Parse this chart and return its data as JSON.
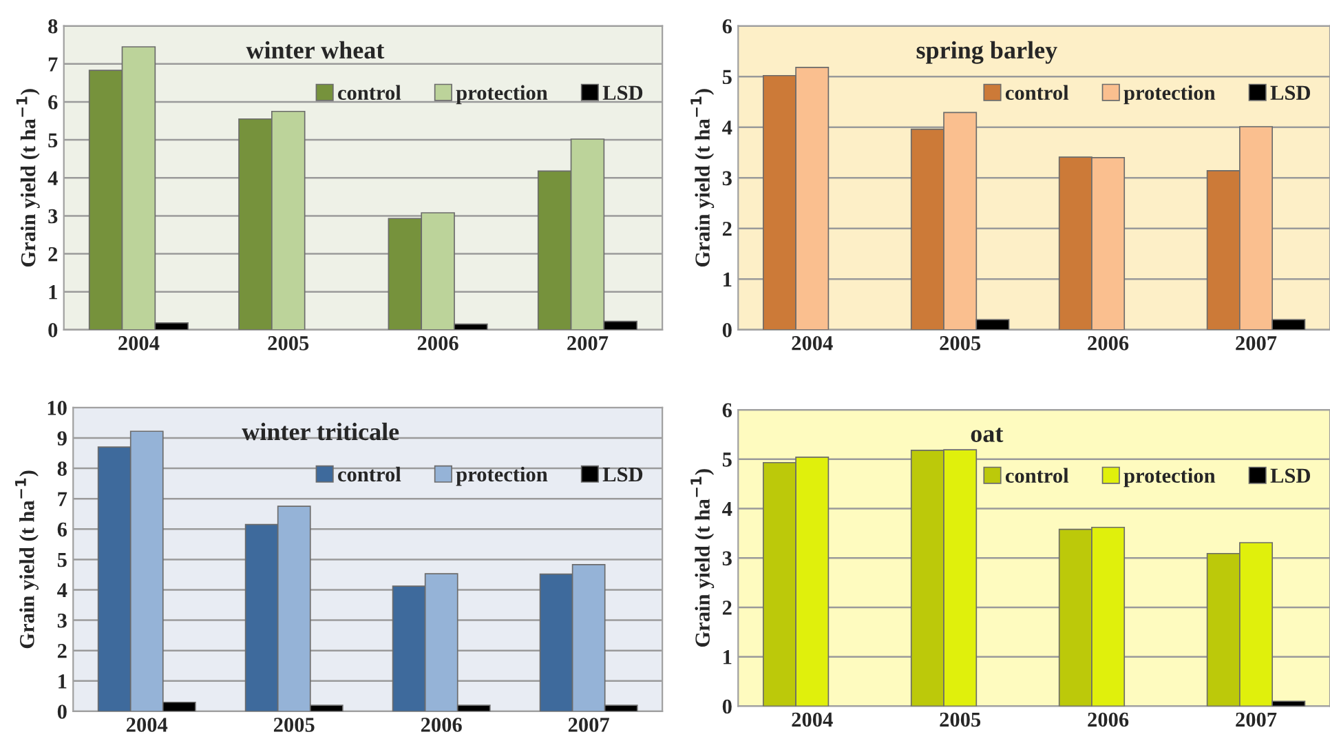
{
  "chart_data": [
    {
      "type": "bar",
      "title": "winter wheat",
      "ylabel": "Grain yield (t ha$^{−1}$)",
      "categories": [
        "2004",
        "2005",
        "2006",
        "2007"
      ],
      "ylim": [
        0,
        8
      ],
      "yticks": [
        0,
        1,
        2,
        3,
        4,
        5,
        6,
        7,
        8
      ],
      "grid": "y",
      "legend": "top right",
      "series": [
        {
          "name": "control",
          "color": "#76923c",
          "values": [
            6.83,
            5.55,
            2.93,
            4.18
          ]
        },
        {
          "name": "protection",
          "color": "#bcd39a",
          "values": [
            7.45,
            5.75,
            3.08,
            5.02
          ]
        },
        {
          "name": "LSD",
          "color": "#000000",
          "values": [
            0.18,
            null,
            0.15,
            0.22
          ]
        }
      ]
    },
    {
      "type": "bar",
      "title": "spring barley",
      "ylabel": "Grain yield (t ha$^{−1}$)",
      "categories": [
        "2004",
        "2005",
        "2006",
        "2007"
      ],
      "ylim": [
        0,
        6
      ],
      "yticks": [
        0,
        1,
        2,
        3,
        4,
        5,
        6
      ],
      "grid": "y",
      "legend": "top right",
      "series": [
        {
          "name": "control",
          "color": "#cc7a38",
          "values": [
            5.02,
            3.96,
            3.41,
            3.14
          ]
        },
        {
          "name": "protection",
          "color": "#fabf8f",
          "values": [
            5.18,
            4.29,
            3.4,
            4.01
          ]
        },
        {
          "name": "LSD",
          "color": "#000000",
          "values": [
            null,
            0.2,
            null,
            0.2
          ]
        }
      ]
    },
    {
      "type": "bar",
      "title": "winter triticale",
      "ylabel": "Grain yield (t ha$^{−1}$)",
      "categories": [
        "2004",
        "2005",
        "2006",
        "2007"
      ],
      "ylim": [
        0,
        10
      ],
      "yticks": [
        0,
        1,
        2,
        3,
        4,
        5,
        6,
        7,
        8,
        9,
        10
      ],
      "grid": "y",
      "legend": "top right",
      "series": [
        {
          "name": "control",
          "color": "#3e6a9c",
          "values": [
            8.7,
            6.15,
            4.12,
            4.52
          ]
        },
        {
          "name": "protection",
          "color": "#95b3d7",
          "values": [
            9.22,
            6.75,
            4.53,
            4.83
          ]
        },
        {
          "name": "LSD",
          "color": "#000000",
          "values": [
            0.3,
            0.2,
            0.2,
            0.2
          ]
        }
      ]
    },
    {
      "type": "bar",
      "title": "oat",
      "ylabel": "Grain yield (t ha$^{−1}$)",
      "categories": [
        "2004",
        "2005",
        "2006",
        "2007"
      ],
      "ylim": [
        0,
        6
      ],
      "yticks": [
        0,
        1,
        2,
        3,
        4,
        5,
        6
      ],
      "grid": "y",
      "legend": "top right",
      "series": [
        {
          "name": "control",
          "color": "#bcc90a",
          "values": [
            4.93,
            5.18,
            3.58,
            3.09
          ]
        },
        {
          "name": "protection",
          "color": "#e0f00c",
          "values": [
            5.04,
            5.19,
            3.62,
            3.31
          ]
        },
        {
          "name": "LSD",
          "color": "#000000",
          "values": [
            null,
            null,
            null,
            0.1
          ]
        }
      ]
    }
  ]
}
